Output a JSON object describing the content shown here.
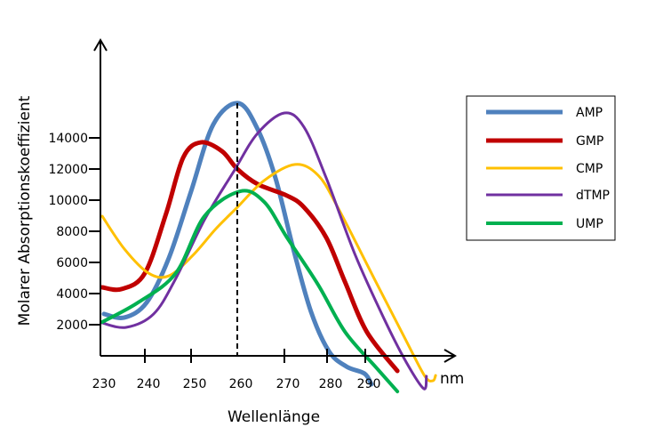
{
  "chart_data": {
    "type": "line",
    "title": "",
    "xlabel": "Wellenlänge",
    "xunit": "nm",
    "ylabel": "Molarer Absorptionskoeffizient",
    "x_ticks": [
      "230",
      "240",
      "250",
      "260",
      "270",
      "280",
      "290"
    ],
    "y_ticks": [
      "2000",
      "4000",
      "6000",
      "8000",
      "10000",
      "12000",
      "14000"
    ],
    "grid": false,
    "legend_position": "right",
    "reference_line_x": 260,
    "series": [
      {
        "name": "AMP",
        "color": "#4F81BD",
        "x": [
          230.8,
          235.4,
          240.4,
          245.2,
          250,
          254.8,
          260.2,
          264.3,
          268.1,
          272.1,
          276.2,
          280.5,
          285.1,
          289.8,
          291.6
        ],
        "values": [
          2690,
          2460,
          3430,
          6290,
          10570,
          14860,
          16230,
          14570,
          11430,
          6860,
          2860,
          290,
          -690,
          -1140,
          -1830
        ]
      },
      {
        "name": "GMP",
        "color": "#C00000",
        "x": [
          230.4,
          234.8,
          240,
          244.6,
          248.3,
          252.1,
          256.7,
          260,
          264.3,
          270.6,
          274.6,
          279.8,
          284.7,
          290.4,
          298.4
        ],
        "values": [
          4400,
          4290,
          5310,
          9140,
          12740,
          13710,
          13140,
          12000,
          11030,
          10290,
          9540,
          7600,
          4740,
          1540,
          -970
        ]
      },
      {
        "name": "CMP",
        "color": "#FFC000",
        "x": [
          230.4,
          235.4,
          240.8,
          245.2,
          250.4,
          255.4,
          260,
          265.7,
          272.5,
          277.9,
          282.8,
          292.8,
          300.7,
          305.6,
          307.7,
          308.4
        ],
        "values": [
          8970,
          6860,
          5310,
          5140,
          6460,
          8170,
          9540,
          11260,
          12290,
          11600,
          9540,
          4740,
          970,
          -1310,
          -1600,
          -1260
        ]
      },
      {
        "name": "dTMP",
        "color": "#7030A0",
        "x": [
          230.4,
          235.8,
          241.9,
          246.7,
          252.9,
          259.2,
          264.3,
          270,
          274.6,
          279.8,
          287.4,
          295.1,
          300.7,
          305.3,
          306
        ],
        "values": [
          2110,
          1830,
          2690,
          4970,
          8740,
          11830,
          14290,
          15600,
          14690,
          11430,
          6460,
          2290,
          -400,
          -2110,
          -1310
        ]
      },
      {
        "name": "UMP",
        "color": "#00B050",
        "x": [
          230.4,
          238.5,
          246.7,
          252.9,
          260.6,
          265.7,
          270.6,
          277.9,
          284.7,
          292.8,
          298.4
        ],
        "values": [
          2170,
          3430,
          5310,
          8970,
          10570,
          9890,
          7600,
          4570,
          1540,
          -740,
          -2290
        ]
      }
    ]
  }
}
